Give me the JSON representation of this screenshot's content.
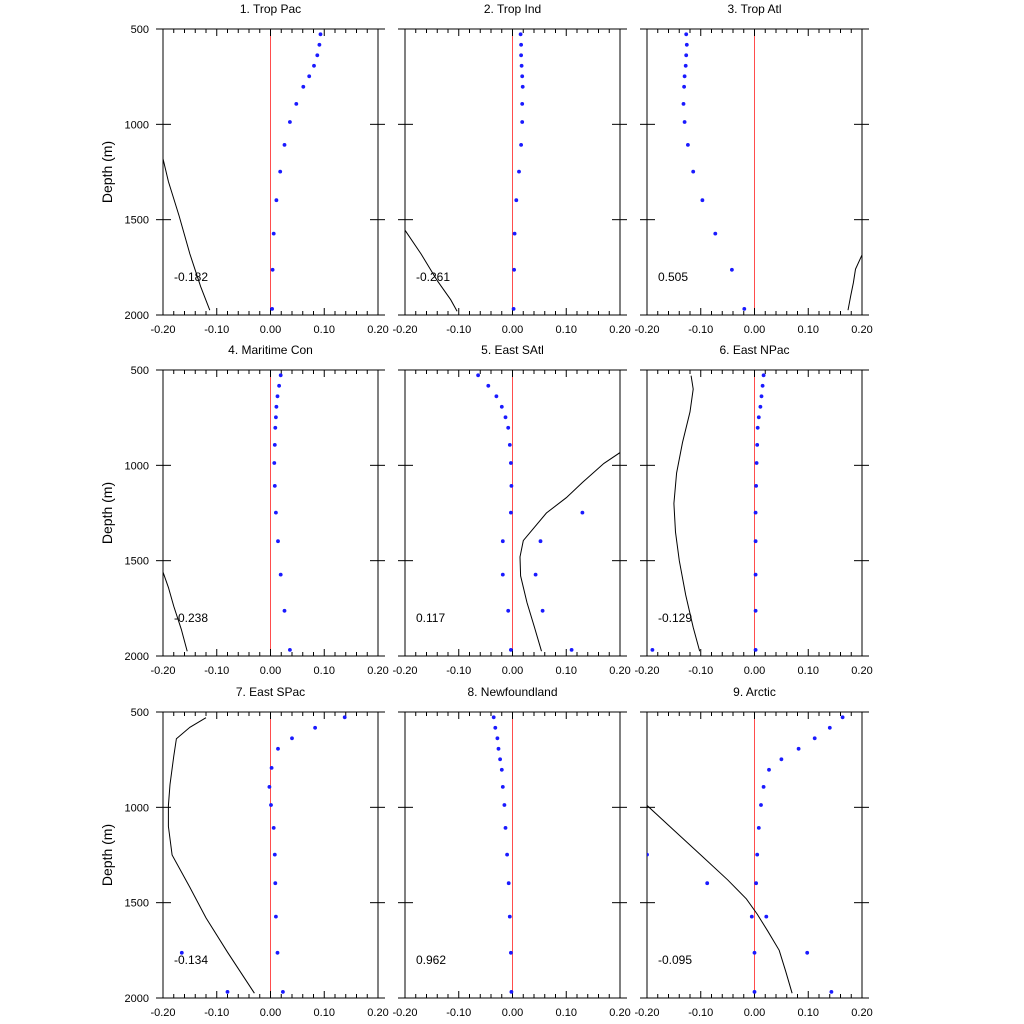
{
  "figure": {
    "ylabel": "Depth (m)",
    "x_ticks": [
      -0.2,
      -0.1,
      0,
      0.1,
      0.2
    ],
    "x_tick_labels": [
      "-0.20",
      "-0.10",
      "0.00",
      "0.10",
      "0.20"
    ],
    "y_ticks": [
      500,
      1000,
      1500,
      2000
    ],
    "y_tick_labels": [
      "500",
      "1000",
      "1500",
      "2000"
    ],
    "xlim": [
      -0.2,
      0.2
    ],
    "ylim": [
      500,
      2000
    ],
    "zero_line_color": "#ff4d4d",
    "dot_color": "#1a1aff",
    "line_color": "#000000"
  },
  "chart_data": [
    {
      "type": "scatter",
      "title": "1. Trop Pac",
      "annotation": "-0.182",
      "dots": [
        [
          0.093,
          528
        ],
        [
          0.091,
          583
        ],
        [
          0.087,
          638
        ],
        [
          0.081,
          693
        ],
        [
          0.072,
          748
        ],
        [
          0.061,
          803
        ],
        [
          0.048,
          893
        ],
        [
          0.036,
          988
        ],
        [
          0.026,
          1108
        ],
        [
          0.018,
          1248
        ],
        [
          0.011,
          1398
        ],
        [
          0.006,
          1573
        ],
        [
          0.004,
          1763
        ],
        [
          0.003,
          1968
        ]
      ],
      "line": [
        [
          -0.2,
          1180
        ],
        [
          -0.19,
          1300
        ],
        [
          -0.17,
          1480
        ],
        [
          -0.15,
          1680
        ],
        [
          -0.13,
          1850
        ],
        [
          -0.113,
          1975
        ]
      ]
    },
    {
      "type": "scatter",
      "title": "2. Trop Ind",
      "annotation": "-0.261",
      "dots": [
        [
          0.015,
          528
        ],
        [
          0.016,
          583
        ],
        [
          0.016,
          638
        ],
        [
          0.017,
          693
        ],
        [
          0.018,
          748
        ],
        [
          0.019,
          803
        ],
        [
          0.018,
          893
        ],
        [
          0.018,
          988
        ],
        [
          0.016,
          1108
        ],
        [
          0.012,
          1248
        ],
        [
          0.007,
          1398
        ],
        [
          0.004,
          1573
        ],
        [
          0.003,
          1763
        ],
        [
          0.002,
          1968
        ]
      ],
      "line": [
        [
          -0.2,
          1555
        ],
        [
          -0.17,
          1680
        ],
        [
          -0.14,
          1820
        ],
        [
          -0.115,
          1920
        ],
        [
          -0.103,
          1980
        ]
      ]
    },
    {
      "type": "scatter",
      "title": "3. Trop Atl",
      "annotation": "0.505",
      "dots": [
        [
          -0.127,
          528
        ],
        [
          -0.126,
          583
        ],
        [
          -0.127,
          638
        ],
        [
          -0.128,
          693
        ],
        [
          -0.13,
          748
        ],
        [
          -0.131,
          803
        ],
        [
          -0.132,
          893
        ],
        [
          -0.13,
          988
        ],
        [
          -0.124,
          1108
        ],
        [
          -0.114,
          1248
        ],
        [
          -0.097,
          1398
        ],
        [
          -0.073,
          1573
        ],
        [
          -0.042,
          1763
        ],
        [
          -0.019,
          1968
        ]
      ],
      "line": [
        [
          0.2,
          1685
        ],
        [
          0.188,
          1760
        ],
        [
          0.184,
          1830
        ],
        [
          0.179,
          1900
        ],
        [
          0.174,
          1975
        ]
      ]
    },
    {
      "type": "scatter",
      "title": "4. Maritime Con",
      "annotation": "-0.238",
      "dots": [
        [
          0.019,
          528
        ],
        [
          0.016,
          583
        ],
        [
          0.013,
          638
        ],
        [
          0.011,
          693
        ],
        [
          0.01,
          748
        ],
        [
          0.009,
          803
        ],
        [
          0.008,
          893
        ],
        [
          0.007,
          988
        ],
        [
          0.008,
          1108
        ],
        [
          0.01,
          1248
        ],
        [
          0.014,
          1398
        ],
        [
          0.019,
          1573
        ],
        [
          0.026,
          1763
        ],
        [
          0.036,
          1968
        ]
      ],
      "line": [
        [
          -0.2,
          1560
        ],
        [
          -0.19,
          1640
        ],
        [
          -0.18,
          1740
        ],
        [
          -0.166,
          1860
        ],
        [
          -0.155,
          1975
        ]
      ]
    },
    {
      "type": "scatter",
      "title": "5. East SAtl",
      "annotation": "0.117",
      "dots": [
        [
          -0.064,
          528
        ],
        [
          -0.045,
          583
        ],
        [
          -0.03,
          638
        ],
        [
          -0.02,
          693
        ],
        [
          -0.013,
          748
        ],
        [
          -0.008,
          803
        ],
        [
          -0.005,
          893
        ],
        [
          -0.003,
          988
        ],
        [
          -0.002,
          1108
        ],
        [
          -0.003,
          1248
        ],
        [
          -0.018,
          1398
        ],
        [
          -0.018,
          1573
        ],
        [
          -0.008,
          1763
        ],
        [
          -0.003,
          1968
        ],
        [
          0.13,
          1248
        ],
        [
          0.052,
          1398
        ],
        [
          0.043,
          1573
        ],
        [
          0.056,
          1763
        ],
        [
          0.11,
          1968
        ]
      ],
      "line": [
        [
          0.2,
          933
        ],
        [
          0.17,
          990
        ],
        [
          0.13,
          1090
        ],
        [
          0.1,
          1170
        ],
        [
          0.063,
          1250
        ],
        [
          0.02,
          1395
        ],
        [
          0.014,
          1480
        ],
        [
          0.015,
          1580
        ],
        [
          0.027,
          1720
        ],
        [
          0.041,
          1850
        ],
        [
          0.054,
          1975
        ]
      ]
    },
    {
      "type": "scatter",
      "title": "6. East NPac",
      "annotation": "-0.129",
      "dots": [
        [
          0.017,
          528
        ],
        [
          0.015,
          583
        ],
        [
          0.013,
          638
        ],
        [
          0.011,
          693
        ],
        [
          0.008,
          748
        ],
        [
          0.006,
          803
        ],
        [
          0.005,
          893
        ],
        [
          0.004,
          988
        ],
        [
          0.003,
          1108
        ],
        [
          0.002,
          1248
        ],
        [
          0.002,
          1398
        ],
        [
          0.002,
          1573
        ],
        [
          0.002,
          1763
        ],
        [
          0.002,
          1968
        ],
        [
          -0.19,
          1968
        ]
      ],
      "line": [
        [
          -0.118,
          530
        ],
        [
          -0.114,
          600
        ],
        [
          -0.12,
          720
        ],
        [
          -0.134,
          880
        ],
        [
          -0.145,
          1040
        ],
        [
          -0.15,
          1200
        ],
        [
          -0.147,
          1350
        ],
        [
          -0.14,
          1500
        ],
        [
          -0.128,
          1680
        ],
        [
          -0.114,
          1850
        ],
        [
          -0.102,
          1975
        ]
      ]
    },
    {
      "type": "scatter",
      "title": "7. East SPac",
      "annotation": "-0.134",
      "dots": [
        [
          0.138,
          528
        ],
        [
          0.083,
          583
        ],
        [
          0.04,
          638
        ],
        [
          0.014,
          693
        ],
        [
          0.002,
          793
        ],
        [
          -0.002,
          893
        ],
        [
          0.001,
          988
        ],
        [
          0.006,
          1108
        ],
        [
          0.008,
          1248
        ],
        [
          0.009,
          1398
        ],
        [
          0.01,
          1573
        ],
        [
          0.013,
          1763
        ],
        [
          0.023,
          1968
        ],
        [
          -0.165,
          1763
        ],
        [
          -0.08,
          1968
        ]
      ],
      "line": [
        [
          -0.12,
          530
        ],
        [
          -0.15,
          580
        ],
        [
          -0.175,
          640
        ],
        [
          -0.18,
          730
        ],
        [
          -0.187,
          880
        ],
        [
          -0.19,
          990
        ],
        [
          -0.19,
          1100
        ],
        [
          -0.183,
          1250
        ],
        [
          -0.15,
          1420
        ],
        [
          -0.12,
          1580
        ],
        [
          -0.08,
          1760
        ],
        [
          -0.03,
          1975
        ]
      ]
    },
    {
      "type": "scatter",
      "title": "8. Newfoundland",
      "annotation": "0.962",
      "dots": [
        [
          -0.035,
          528
        ],
        [
          -0.032,
          583
        ],
        [
          -0.028,
          638
        ],
        [
          -0.026,
          693
        ],
        [
          -0.023,
          748
        ],
        [
          -0.02,
          803
        ],
        [
          -0.018,
          893
        ],
        [
          -0.015,
          988
        ],
        [
          -0.013,
          1108
        ],
        [
          -0.01,
          1248
        ],
        [
          -0.007,
          1398
        ],
        [
          -0.005,
          1573
        ],
        [
          -0.003,
          1763
        ],
        [
          -0.002,
          1968
        ]
      ],
      "line": []
    },
    {
      "type": "scatter",
      "title": "9. Arctic",
      "annotation": "-0.095",
      "dots": [
        [
          0.164,
          528
        ],
        [
          0.14,
          583
        ],
        [
          0.112,
          638
        ],
        [
          0.082,
          693
        ],
        [
          0.05,
          748
        ],
        [
          0.027,
          803
        ],
        [
          0.017,
          893
        ],
        [
          0.012,
          988
        ],
        [
          0.008,
          1108
        ],
        [
          0.005,
          1248
        ],
        [
          0.003,
          1398
        ],
        [
          -0.005,
          1573
        ],
        [
          0,
          1763
        ],
        [
          0,
          1968
        ],
        [
          -0.2,
          1248
        ],
        [
          -0.088,
          1398
        ],
        [
          0.022,
          1573
        ],
        [
          0.098,
          1763
        ],
        [
          0.143,
          1968
        ]
      ],
      "line": [
        [
          -0.2,
          990
        ],
        [
          -0.15,
          1120
        ],
        [
          -0.1,
          1250
        ],
        [
          -0.05,
          1380
        ],
        [
          -0.015,
          1480
        ],
        [
          0.005,
          1560
        ],
        [
          0.025,
          1650
        ],
        [
          0.046,
          1750
        ],
        [
          0.058,
          1860
        ],
        [
          0.07,
          1975
        ]
      ]
    }
  ]
}
